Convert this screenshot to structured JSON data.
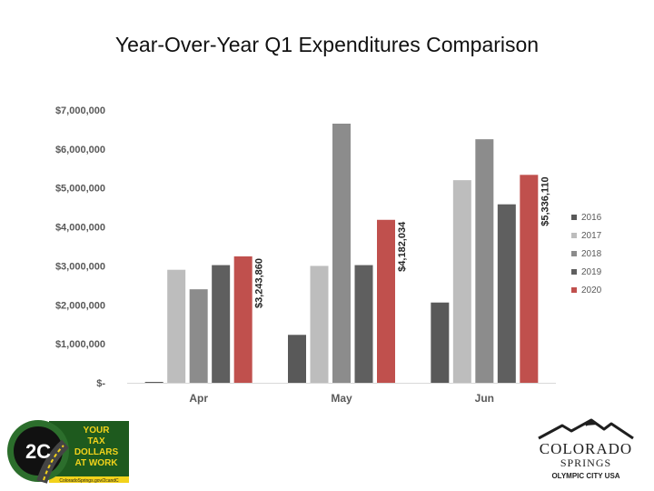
{
  "colors": {
    "s2016": "#595959",
    "s2017": "#bdbdbd",
    "s2018": "#8c8c8c",
    "s2019": "#5f5f5f",
    "s2020": "#c0504d"
  },
  "chart_data": {
    "type": "bar",
    "title": "Year-Over-Year Q1 Expenditures Comparison",
    "xlabel": "",
    "ylabel": "",
    "ylim": [
      0,
      7000000
    ],
    "y_ticks": [
      {
        "value": 0,
        "label": "$-"
      },
      {
        "value": 1000000,
        "label": "$1,000,000"
      },
      {
        "value": 2000000,
        "label": "$2,000,000"
      },
      {
        "value": 3000000,
        "label": "$3,000,000"
      },
      {
        "value": 4000000,
        "label": "$4,000,000"
      },
      {
        "value": 5000000,
        "label": "$5,000,000"
      },
      {
        "value": 6000000,
        "label": "$6,000,000"
      },
      {
        "value": 7000000,
        "label": "$7,000,000"
      }
    ],
    "categories": [
      "Apr",
      "May",
      "Jun"
    ],
    "legend_position": "right",
    "series": [
      {
        "name": "2016",
        "color_key": "s2016",
        "values": [
          20000,
          1230000,
          2060000
        ]
      },
      {
        "name": "2017",
        "color_key": "s2017",
        "values": [
          2900000,
          3000000,
          5200000
        ]
      },
      {
        "name": "2018",
        "color_key": "s2018",
        "values": [
          2400000,
          6650000,
          6250000
        ]
      },
      {
        "name": "2019",
        "color_key": "s2019",
        "values": [
          3020000,
          3020000,
          4580000
        ]
      },
      {
        "name": "2020",
        "color_key": "s2020",
        "values": [
          3243860,
          4182034,
          5336110
        ],
        "data_labels": [
          "$3,243,860",
          "$4,182,034",
          "$5,336,110"
        ]
      }
    ]
  },
  "logos": {
    "program": {
      "badge": "2C",
      "line1": "YOUR",
      "line2": "TAX",
      "line3": "DOLLARS",
      "line4": "AT WORK",
      "footer": "ColoradoSprings.gov/2candC"
    },
    "city": {
      "line1": "COLORADO",
      "line2": "SPRINGS",
      "line3": "OLYMPIC CITY USA"
    }
  }
}
